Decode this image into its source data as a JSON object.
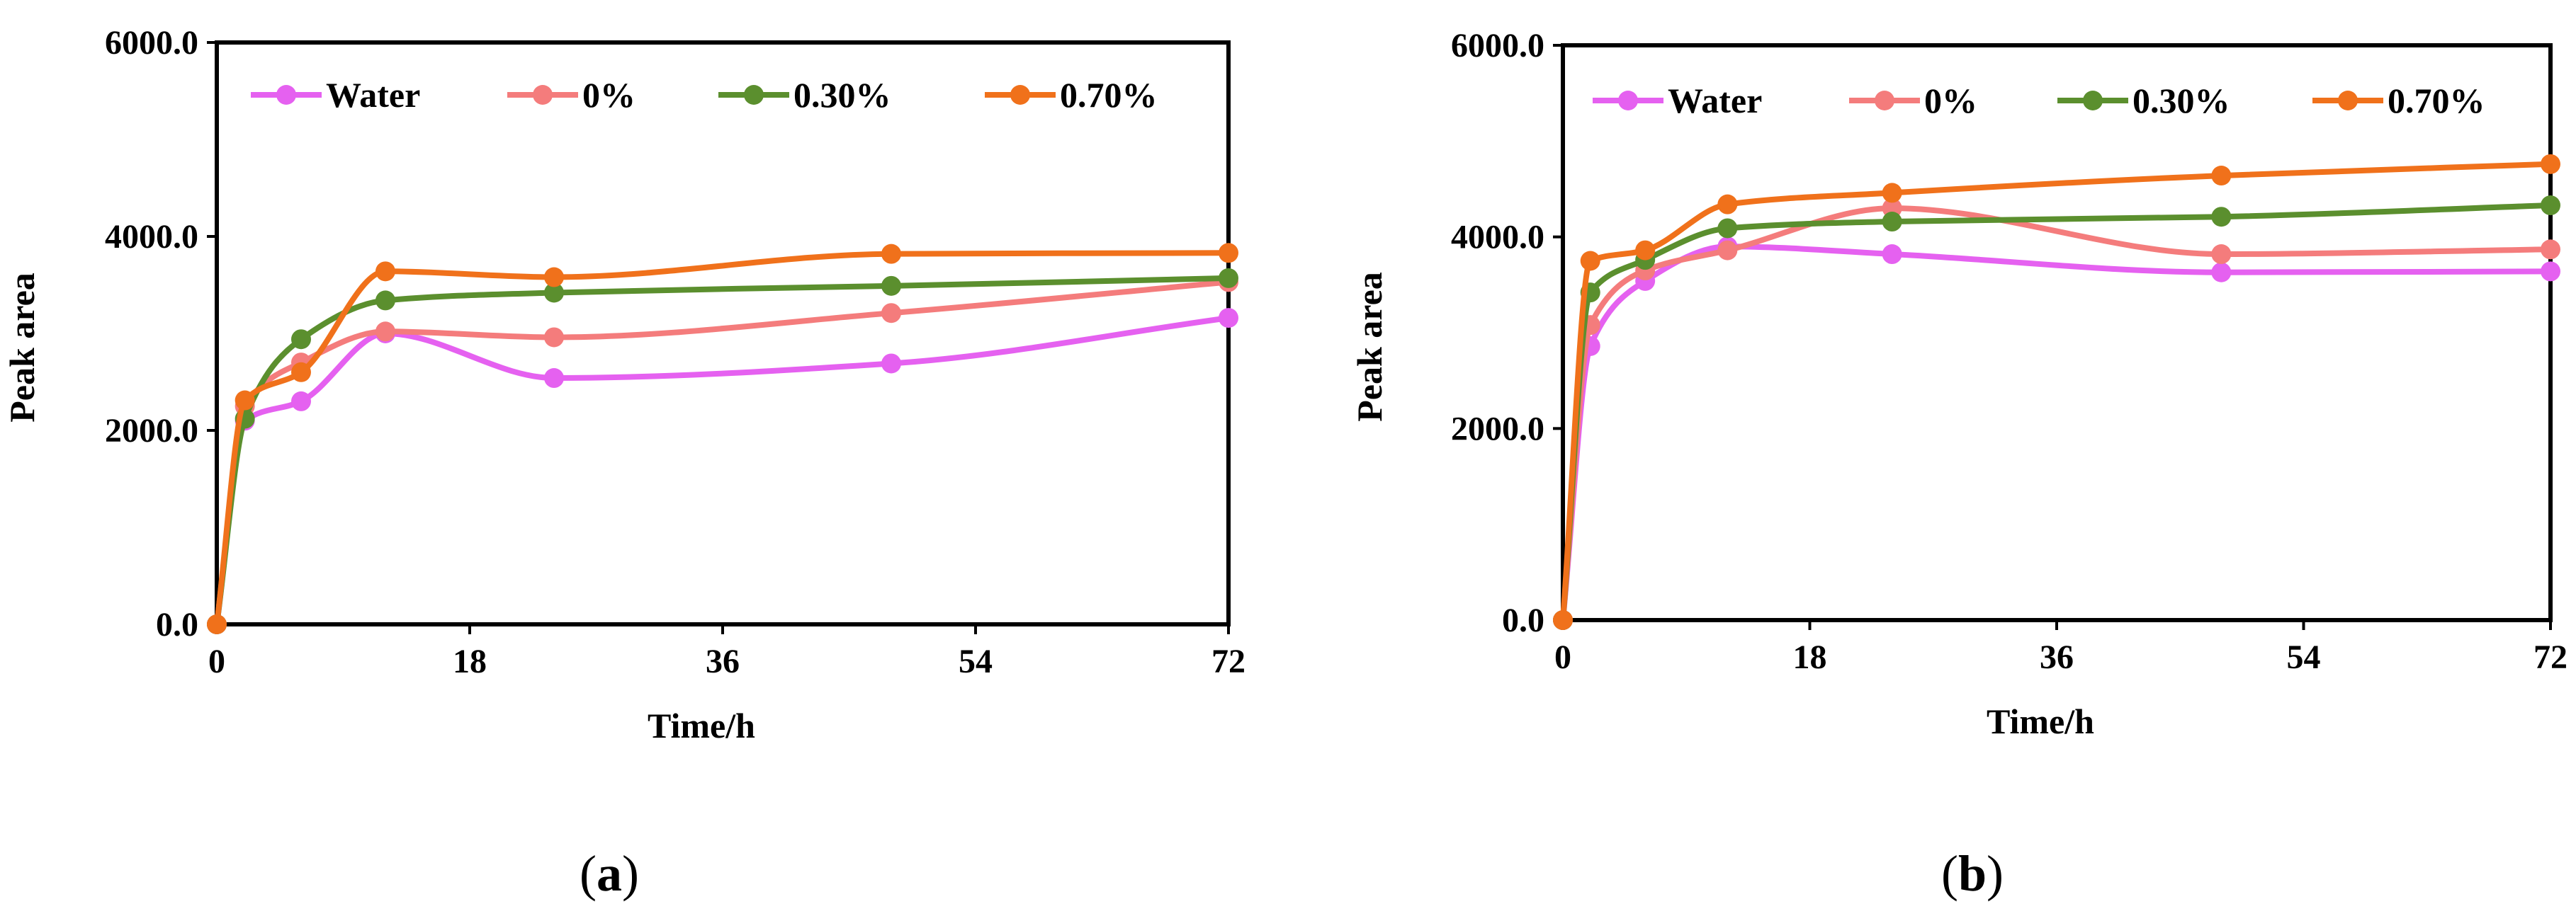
{
  "chart_data": [
    {
      "type": "line",
      "caption_letter": "a",
      "caption_open": "(",
      "caption_close": ")",
      "xlabel": "Time/h",
      "ylabel": "Peak area",
      "xlim": [
        0,
        72
      ],
      "ylim": [
        0,
        6000
      ],
      "xticks": [
        0,
        18,
        36,
        54,
        72
      ],
      "xtick_labels": [
        "0",
        "18",
        "36",
        "54",
        "72"
      ],
      "yticks": [
        0,
        2000,
        4000,
        6000
      ],
      "ytick_labels": [
        "0.0",
        "2000.0",
        "4000.0",
        "6000.0"
      ],
      "grid": false,
      "legend_position": "top",
      "x": [
        0,
        2,
        6,
        12,
        24,
        48,
        72
      ],
      "series": [
        {
          "name": "Water",
          "color": "#e561f0",
          "values": [
            0,
            2100,
            2300,
            3000,
            2540,
            2690,
            3160
          ]
        },
        {
          "name": "0%",
          "color": "#f47c7c",
          "values": [
            0,
            2250,
            2700,
            3020,
            2960,
            3210,
            3530
          ]
        },
        {
          "name": "0.30%",
          "color": "#5b8f2e",
          "values": [
            0,
            2120,
            2940,
            3340,
            3420,
            3490,
            3570
          ]
        },
        {
          "name": "0.70%",
          "color": "#f0711b",
          "values": [
            0,
            2310,
            2600,
            3640,
            3580,
            3820,
            3830
          ]
        }
      ]
    },
    {
      "type": "line",
      "caption_letter": "b",
      "caption_open": "(",
      "caption_close": ")",
      "xlabel": "Time/h",
      "ylabel": "Peak area",
      "xlim": [
        0,
        72
      ],
      "ylim": [
        0,
        6000
      ],
      "xticks": [
        0,
        18,
        36,
        54,
        72
      ],
      "xtick_labels": [
        "0",
        "18",
        "36",
        "54",
        "72"
      ],
      "yticks": [
        0,
        2000,
        4000,
        6000
      ],
      "ytick_labels": [
        "0.0",
        "2000.0",
        "4000.0",
        "6000.0"
      ],
      "grid": false,
      "legend_position": "top",
      "x": [
        0,
        2,
        6,
        12,
        24,
        48,
        72
      ],
      "series": [
        {
          "name": "Water",
          "color": "#e561f0",
          "values": [
            0,
            2860,
            3540,
            3900,
            3820,
            3630,
            3640
          ]
        },
        {
          "name": "0%",
          "color": "#f47c7c",
          "values": [
            0,
            3080,
            3650,
            3860,
            4300,
            3820,
            3870
          ]
        },
        {
          "name": "0.30%",
          "color": "#5b8f2e",
          "values": [
            0,
            3420,
            3760,
            4090,
            4160,
            4210,
            4330
          ]
        },
        {
          "name": "0.70%",
          "color": "#f0711b",
          "values": [
            0,
            3750,
            3860,
            4340,
            4460,
            4640,
            4760
          ]
        }
      ]
    }
  ]
}
